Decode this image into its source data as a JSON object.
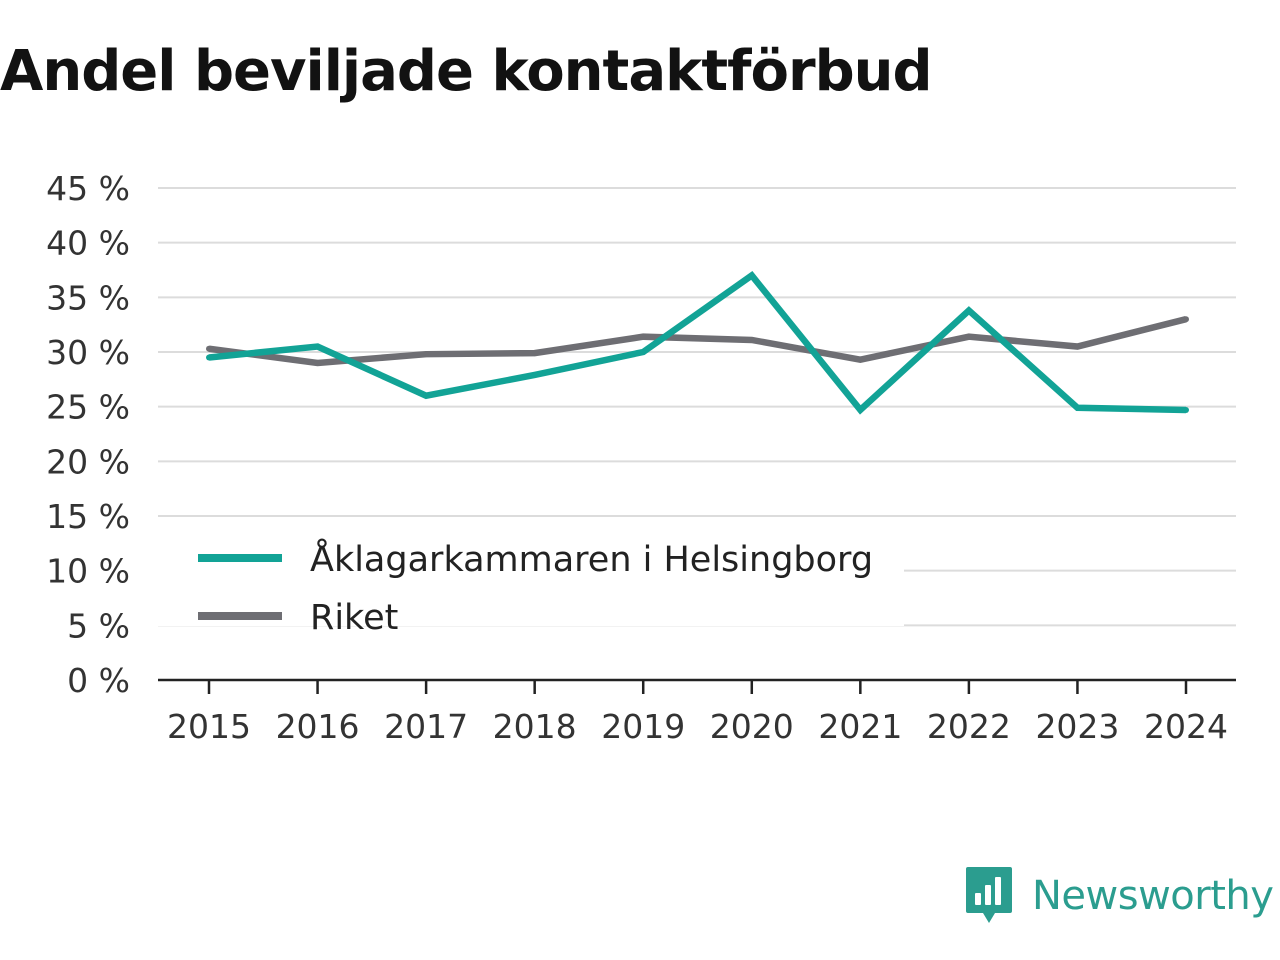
{
  "title": "Andel beviljade kontaktförbud",
  "brand": {
    "name": "Newsworthy",
    "icon": "newsworthy-logo-icon",
    "color": "#2b9d8f"
  },
  "chart_data": {
    "type": "line",
    "title": "Andel beviljade kontaktförbud",
    "xlabel": "",
    "ylabel": "",
    "x": [
      "2015",
      "2016",
      "2017",
      "2018",
      "2019",
      "2020",
      "2021",
      "2022",
      "2023",
      "2024"
    ],
    "ylim": [
      0,
      45
    ],
    "yticks": [
      0,
      5,
      10,
      15,
      20,
      25,
      30,
      35,
      40,
      45
    ],
    "ytick_labels": [
      "0 %",
      "5 %",
      "10 %",
      "15 %",
      "20 %",
      "25 %",
      "30 %",
      "35 %",
      "40 %",
      "45 %"
    ],
    "grid": true,
    "legend_position": "lower-left",
    "series": [
      {
        "name": "Åklagarkammaren i Helsingborg",
        "color": "#12a396",
        "values": [
          29.5,
          30.5,
          26.0,
          27.9,
          30.0,
          37.0,
          24.7,
          33.8,
          24.9,
          24.7
        ]
      },
      {
        "name": "Riket",
        "color": "#6e6e73",
        "values": [
          30.3,
          29.0,
          29.8,
          29.9,
          31.4,
          31.1,
          29.3,
          31.4,
          30.5,
          33.0
        ]
      }
    ]
  }
}
